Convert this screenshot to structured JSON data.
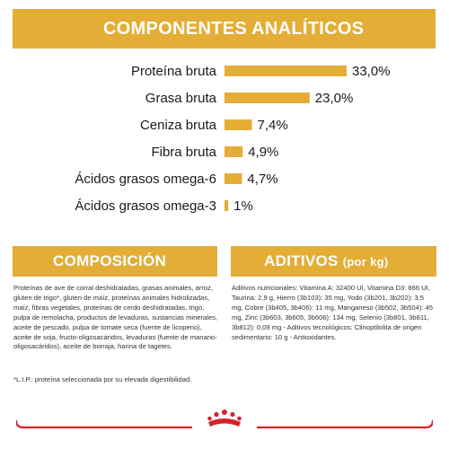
{
  "colors": {
    "accent": "#e3ad36",
    "brand_red": "#d2232a"
  },
  "header": {
    "title": "COMPONENTES ANALÍTICOS"
  },
  "chart_data": {
    "type": "bar",
    "orientation": "horizontal",
    "categories": [
      "Proteína bruta",
      "Grasa bruta",
      "Ceniza bruta",
      "Fibra bruta",
      "Ácidos grasos omega-6",
      "Ácidos grasos omega-3"
    ],
    "values": [
      33.0,
      23.0,
      7.4,
      4.9,
      4.7,
      1.0
    ],
    "value_labels": [
      "33,0%",
      "23,0%",
      "7,4%",
      "4,9%",
      "4,7%",
      "1%"
    ],
    "unit": "%",
    "grid": false,
    "legend": "none"
  },
  "composicion": {
    "title": "COMPOSICIÓN",
    "text": "Proteínas de ave de corral deshidratadas, grasas animales, arroz, gluten de trigo*, gluten de maíz, proteínas animales hidrolizadas, maíz, fibras vegetales, proteínas de cerdo deshidratadas, trigo, pulpa de remolacha, productos de levaduras, sustancias minerales, aceite de pescado, pulpa de tomate seca (fuente de licopeno), aceite de soja, fructo-oligosacáridos, levaduras (fuente de manano-oligosacáridos), aceite de borraja, harina de tagetes.",
    "note": "*L.I.P.: proteína seleccionada por su elevada digestibilidad."
  },
  "aditivos": {
    "title": "ADITIVOS",
    "unit": "(por kg)",
    "text": "Aditivos nutricionales: Vitamina A: 32400 UI, Vitamina D3: 866 UI, Taurina: 2,9 g, Hierro (3b103): 35 mg, Yodo (3b201, 3b202): 3,5 mg, Cobre (3b405, 3b406): 11 mg, Manganeso (3b502, 3b504): 45 mg, Zinc (3b603, 3b605, 3b606): 134 mg, Selenio (3b801, 3b811, 3b812): 0,09 mg - Aditivos tecnológicos: Clinoptilolita de origen sedimentario: 10 g - Antioxidantes."
  },
  "footer": {
    "logo_icon": "royal-canin-crown-icon"
  }
}
